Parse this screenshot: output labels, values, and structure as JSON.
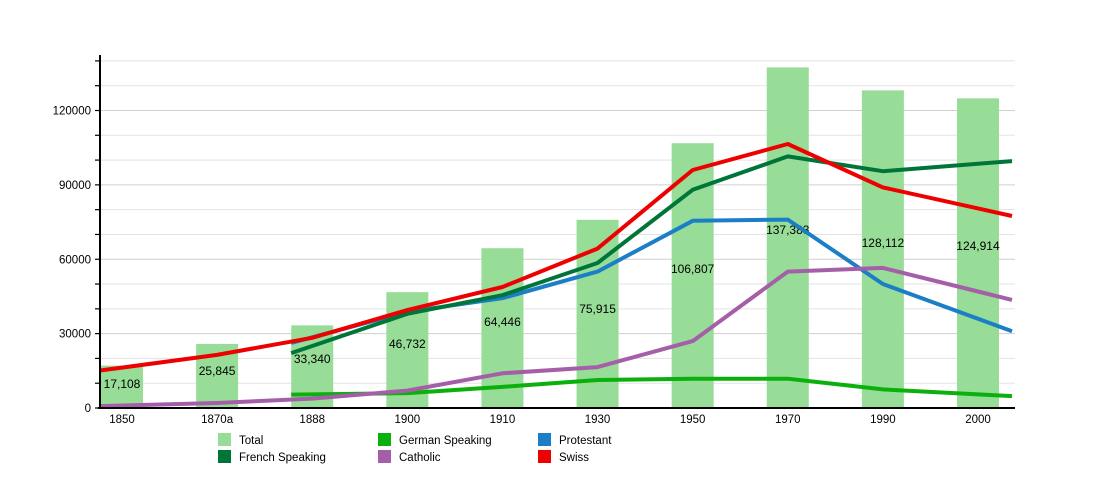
{
  "chart_data": [
    {
      "type": "bar",
      "title": "",
      "series_name": "Total",
      "categories": [
        "1850",
        "1870a",
        "1888",
        "1900",
        "1910",
        "1930",
        "1950",
        "1970",
        "1990",
        "2000"
      ],
      "values": [
        17108,
        25845,
        33340,
        46732,
        64446,
        75915,
        106807,
        137383,
        128112,
        124914
      ],
      "bar_labels": [
        "17,108",
        "25,845",
        "33,340",
        "46,732",
        "64,446",
        "75,915",
        "106,807",
        "137,383",
        "128,112",
        "124,914"
      ],
      "bar_color": "#97dd97",
      "xlabel": "",
      "ylabel": "",
      "ylim": [
        0,
        143000
      ],
      "ytick_values": [
        0,
        30000,
        60000,
        90000,
        120000
      ],
      "ytick_labels": [
        "0",
        "30000",
        "60000",
        "90000",
        "120000"
      ],
      "grid": true,
      "grid_interval": 10000,
      "legend_position": "bottom"
    },
    {
      "type": "line",
      "categories": [
        "1850",
        "1870a",
        "1888",
        "1900",
        "1910",
        "1930",
        "1950",
        "1970",
        "1990",
        "2000"
      ],
      "series": [
        {
          "name": "German Speaking",
          "color": "#0cb00c",
          "values": [
            null,
            null,
            5500,
            6000,
            8500,
            11300,
            11800,
            11800,
            7500,
            5500
          ]
        },
        {
          "name": "French Speaking",
          "color": "#00753a",
          "values": [
            null,
            null,
            25000,
            38000,
            45500,
            58500,
            88000,
            101500,
            95500,
            98500
          ]
        },
        {
          "name": "Protestant",
          "color": "#1c7ec6",
          "values": [
            null,
            null,
            28500,
            38800,
            44300,
            55000,
            75500,
            76000,
            50000,
            36000
          ]
        },
        {
          "name": "Catholic",
          "color": "#a55fa8",
          "values": [
            1000,
            2000,
            3800,
            7000,
            14000,
            16500,
            27000,
            55000,
            56500,
            47000
          ]
        },
        {
          "name": "Swiss",
          "color": "#ee0000",
          "values": [
            16300,
            21400,
            28300,
            39500,
            48800,
            64300,
            96000,
            106500,
            89000,
            80500
          ]
        }
      ]
    }
  ],
  "legend": {
    "columns": [
      [
        {
          "label": "Total",
          "color": "#97dd97"
        },
        {
          "label": "French Speaking",
          "color": "#00753a"
        }
      ],
      [
        {
          "label": "German Speaking",
          "color": "#0cb00c"
        },
        {
          "label": "Catholic",
          "color": "#a55fa8"
        }
      ],
      [
        {
          "label": "Protestant",
          "color": "#1c7ec6"
        },
        {
          "label": "Swiss",
          "color": "#ee0000"
        }
      ]
    ]
  }
}
